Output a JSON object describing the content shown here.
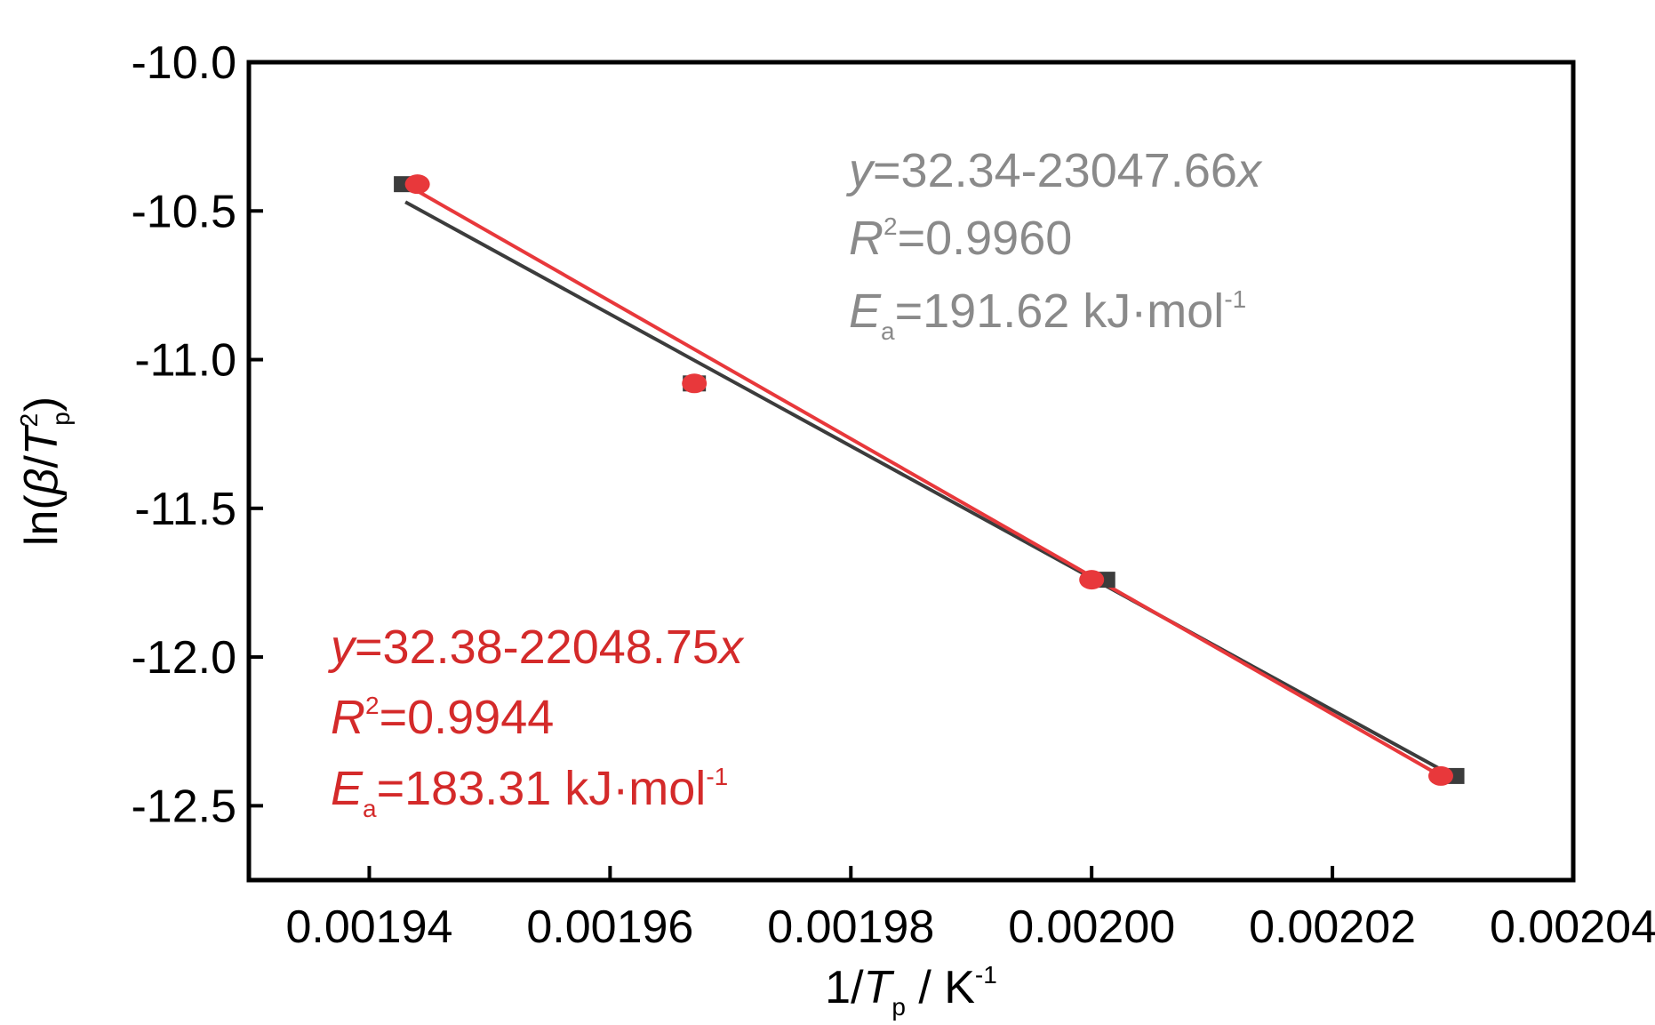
{
  "chart_data": {
    "type": "scatter",
    "x_axis": {
      "label_prefix": "1/",
      "label_var": "T",
      "label_sub": "p",
      "label_suffix": " / K",
      "label_sup": "-1",
      "range": [
        0.00193,
        0.00204
      ],
      "ticks": [
        0.00194,
        0.00196,
        0.00198,
        0.002,
        0.00202,
        0.00204
      ],
      "tick_labels": [
        "0.00194",
        "0.00196",
        "0.00198",
        "0.00200",
        "0.00202",
        "0.00204"
      ]
    },
    "y_axis": {
      "label_prefix": "ln(",
      "label_beta": "β",
      "label_slash": "/",
      "label_var": "T",
      "label_sup": "2",
      "label_sub": "p",
      "label_suffix": ")",
      "range": [
        -12.75,
        -10.0
      ],
      "ticks": [
        -10.0,
        -10.5,
        -11.0,
        -11.5,
        -12.0,
        -12.5
      ],
      "tick_labels": [
        "-10.0",
        "-10.5",
        "-11.0",
        "-11.5",
        "-12.0",
        "-12.5"
      ]
    },
    "grid": false,
    "series": [
      {
        "color": "#3c3c3c",
        "marker": "square",
        "points": [
          {
            "x": 0.001943,
            "y": -10.41
          },
          {
            "x": 0.001967,
            "y": -11.08
          },
          {
            "x": 0.002001,
            "y": -11.74
          },
          {
            "x": 0.00203,
            "y": -12.4
          }
        ],
        "fit": {
          "x": [
            0.001943,
            0.00203
          ],
          "y": [
            -10.47,
            -12.4
          ]
        },
        "annotation": {
          "eq_var": "y",
          "eq_mid": "=32.34-23047.66",
          "eq_end": "x",
          "r2_var": "R",
          "r2_sup": "2",
          "r2_val": "=0.9960",
          "ea_var": "E",
          "ea_sub": "a",
          "ea_val": "=191.62 kJ·mol",
          "ea_sup": "-1"
        }
      },
      {
        "color": "#e8383b",
        "marker": "circle",
        "points": [
          {
            "x": 0.001944,
            "y": -10.41
          },
          {
            "x": 0.001967,
            "y": -11.08
          },
          {
            "x": 0.002,
            "y": -11.74
          },
          {
            "x": 0.002029,
            "y": -12.4
          }
        ],
        "fit": {
          "x": [
            0.001943,
            0.002029
          ],
          "y": [
            -10.41,
            -12.4
          ]
        },
        "annotation": {
          "eq_var": "y",
          "eq_mid": "=32.38-22048.75",
          "eq_end": "x",
          "r2_var": "R",
          "r2_sup": "2",
          "r2_val": "=0.9944",
          "ea_var": "E",
          "ea_sub": "a",
          "ea_val": "=183.31 kJ·mol",
          "ea_sup": "-1"
        }
      }
    ]
  }
}
